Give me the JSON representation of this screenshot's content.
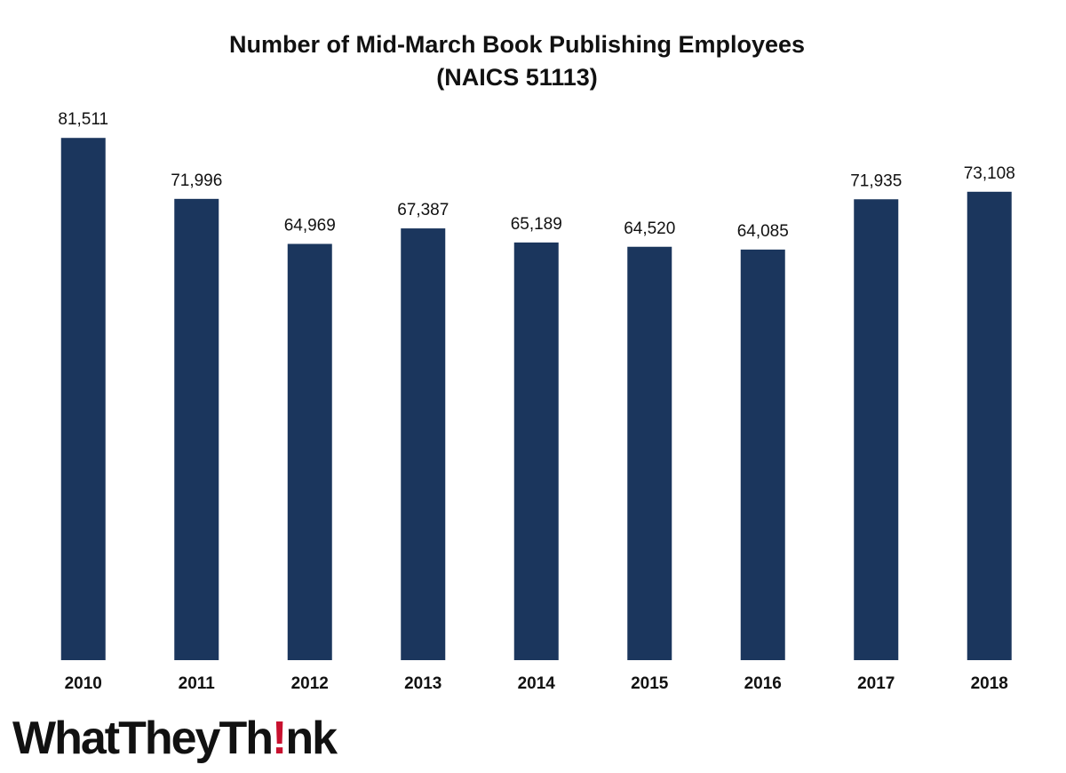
{
  "chart_data": {
    "type": "bar",
    "title": "Number of Mid-March Book Publishing Employees",
    "subtitle": "(NAICS 51113)",
    "categories": [
      "2010",
      "2011",
      "2012",
      "2013",
      "2014",
      "2015",
      "2016",
      "2017",
      "2018"
    ],
    "values": [
      81511,
      71996,
      64969,
      67387,
      65189,
      64520,
      64085,
      71935,
      73108
    ],
    "value_labels": [
      "81,511",
      "71,996",
      "64,969",
      "67,387",
      "65,189",
      "64,520",
      "64,085",
      "71,935",
      "73,108"
    ],
    "color": "#1b365d",
    "ylim": [
      0,
      90000
    ]
  },
  "logo": {
    "parts": [
      "WhatTheyTh",
      "!",
      "nk"
    ]
  }
}
